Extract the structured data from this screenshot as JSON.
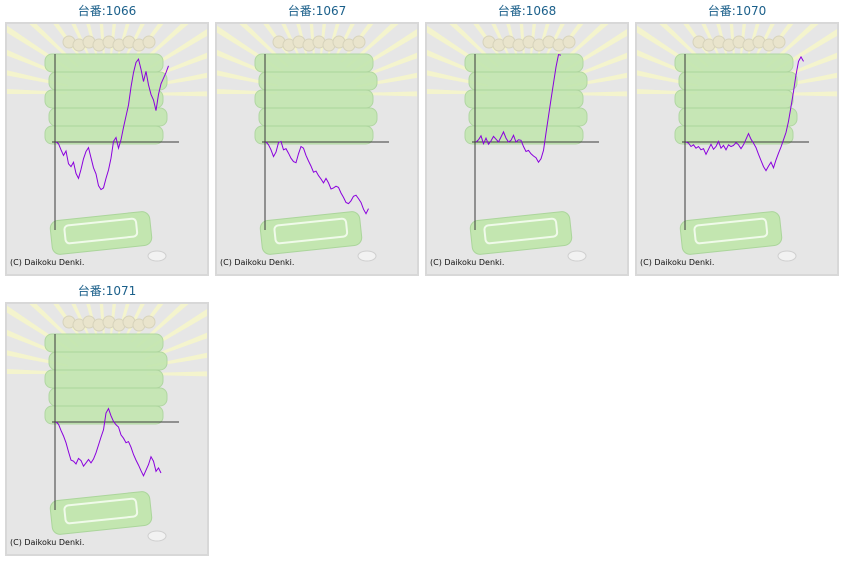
{
  "colors": {
    "title": "#1a5f8a",
    "panel_bg": "#e6e6e6",
    "panel_border": "#d8d8d8",
    "line": "#8a00dd",
    "axis": "#3a3a3a",
    "watermark_green": "#c3e6b0",
    "watermark_rays": "#f6f6c8"
  },
  "icons": {
    "background": "pachinko-machine-watermark-icon"
  },
  "chart_data": [
    {
      "type": "line",
      "title": "台番:1066",
      "copyright": "(C) Daikoku Denki.",
      "values": [
        0.0,
        -0.06,
        -0.28,
        -0.48,
        -0.32,
        -0.78,
        -0.88,
        -0.72,
        -1.12,
        -1.3,
        -0.98,
        -0.6,
        -0.34,
        -0.2,
        -0.56,
        -0.92,
        -1.14,
        -1.56,
        -1.7,
        -1.64,
        -1.3,
        -1.0,
        -0.58,
        0.02,
        0.16,
        -0.22,
        0.08,
        0.52,
        0.92,
        1.32,
        1.96,
        2.48,
        2.84,
        2.96,
        2.6,
        2.16,
        2.52,
        2.04,
        1.7,
        1.5,
        1.12,
        1.7,
        2.08,
        2.28,
        2.48,
        2.72
      ]
    },
    {
      "type": "line",
      "title": "台番:1067",
      "copyright": "(C) Daikoku Denki.",
      "values": [
        0.0,
        -0.1,
        -0.28,
        -0.52,
        -0.36,
        -0.02,
        0.02,
        -0.28,
        -0.24,
        -0.4,
        -0.58,
        -0.7,
        -0.74,
        -0.42,
        -0.16,
        -0.22,
        -0.48,
        -0.68,
        -0.86,
        -1.08,
        -1.04,
        -1.2,
        -1.32,
        -1.46,
        -1.3,
        -1.46,
        -1.68,
        -1.64,
        -1.58,
        -1.62,
        -1.82,
        -1.98,
        -2.16,
        -2.2,
        -2.1,
        -1.94,
        -1.9,
        -2.02,
        -2.16,
        -2.4,
        -2.56,
        -2.38
      ]
    },
    {
      "type": "line",
      "title": "台番:1068",
      "copyright": "(C) Daikoku Denki.",
      "values": [
        0.0,
        0.08,
        0.22,
        -0.06,
        0.14,
        -0.08,
        0.04,
        0.2,
        0.1,
        0.0,
        0.18,
        0.36,
        0.14,
        0.0,
        0.06,
        0.24,
        0.0,
        0.08,
        0.06,
        -0.16,
        -0.34,
        -0.3,
        -0.42,
        -0.5,
        -0.56,
        -0.72,
        -0.6,
        -0.3,
        0.32,
        0.92,
        1.52,
        2.1,
        2.68,
        3.12,
        3.1
      ]
    },
    {
      "type": "line",
      "title": "台番:1070",
      "copyright": "(C) Daikoku Denki.",
      "values": [
        0.0,
        -0.04,
        -0.16,
        -0.1,
        -0.22,
        -0.16,
        -0.28,
        -0.24,
        -0.44,
        -0.26,
        -0.08,
        -0.26,
        -0.16,
        0.02,
        -0.22,
        -0.12,
        -0.28,
        -0.1,
        -0.16,
        -0.12,
        -0.02,
        -0.1,
        -0.24,
        -0.1,
        0.1,
        0.3,
        0.1,
        -0.04,
        -0.2,
        -0.44,
        -0.66,
        -0.88,
        -1.02,
        -0.86,
        -0.72,
        -0.92,
        -0.64,
        -0.4,
        -0.18,
        0.08,
        0.34,
        0.74,
        1.26,
        1.8,
        2.4,
        2.88,
        3.04,
        2.88
      ]
    },
    {
      "type": "line",
      "title": "台番:1071",
      "copyright": "(C) Daikoku Denki.",
      "values": [
        0.0,
        -0.08,
        -0.3,
        -0.5,
        -0.74,
        -1.06,
        -1.36,
        -1.4,
        -1.5,
        -1.3,
        -1.38,
        -1.58,
        -1.46,
        -1.34,
        -1.46,
        -1.32,
        -1.1,
        -0.82,
        -0.54,
        -0.28,
        0.32,
        0.48,
        0.22,
        0.02,
        -0.1,
        -0.18,
        -0.46,
        -0.58,
        -0.74,
        -0.7,
        -0.9,
        -1.16,
        -1.36,
        -1.54,
        -1.74,
        -1.92,
        -1.72,
        -1.52,
        -1.24,
        -1.4,
        -1.76,
        -1.64,
        -1.82
      ]
    }
  ]
}
